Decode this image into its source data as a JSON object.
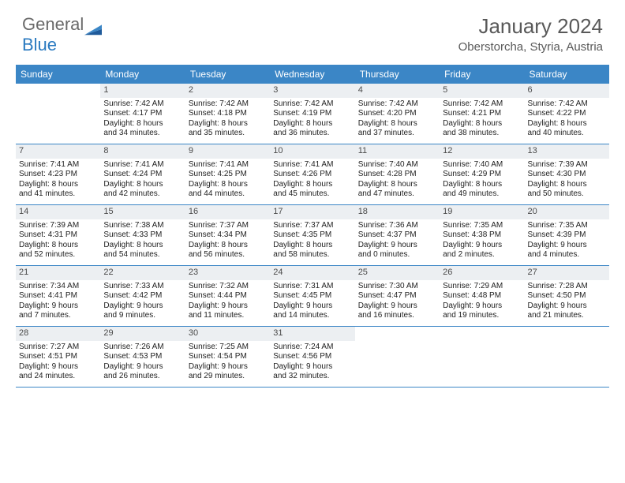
{
  "logo": {
    "general": "General",
    "blue": "Blue"
  },
  "title": "January 2024",
  "location": "Oberstorcha, Styria, Austria",
  "colors": {
    "header_bg": "#3b86c6",
    "header_text": "#ffffff",
    "daynum_bg": "#eceff2",
    "border": "#3b86c6",
    "logo_gray": "#6a6a6a",
    "logo_blue": "#2a7ac0",
    "title_color": "#595959"
  },
  "day_names": [
    "Sunday",
    "Monday",
    "Tuesday",
    "Wednesday",
    "Thursday",
    "Friday",
    "Saturday"
  ],
  "weeks": [
    [
      {
        "empty": true
      },
      {
        "n": "1",
        "rise": "7:42 AM",
        "set": "4:17 PM",
        "dl1": "Daylight: 8 hours",
        "dl2": "and 34 minutes."
      },
      {
        "n": "2",
        "rise": "7:42 AM",
        "set": "4:18 PM",
        "dl1": "Daylight: 8 hours",
        "dl2": "and 35 minutes."
      },
      {
        "n": "3",
        "rise": "7:42 AM",
        "set": "4:19 PM",
        "dl1": "Daylight: 8 hours",
        "dl2": "and 36 minutes."
      },
      {
        "n": "4",
        "rise": "7:42 AM",
        "set": "4:20 PM",
        "dl1": "Daylight: 8 hours",
        "dl2": "and 37 minutes."
      },
      {
        "n": "5",
        "rise": "7:42 AM",
        "set": "4:21 PM",
        "dl1": "Daylight: 8 hours",
        "dl2": "and 38 minutes."
      },
      {
        "n": "6",
        "rise": "7:42 AM",
        "set": "4:22 PM",
        "dl1": "Daylight: 8 hours",
        "dl2": "and 40 minutes."
      }
    ],
    [
      {
        "n": "7",
        "rise": "7:41 AM",
        "set": "4:23 PM",
        "dl1": "Daylight: 8 hours",
        "dl2": "and 41 minutes."
      },
      {
        "n": "8",
        "rise": "7:41 AM",
        "set": "4:24 PM",
        "dl1": "Daylight: 8 hours",
        "dl2": "and 42 minutes."
      },
      {
        "n": "9",
        "rise": "7:41 AM",
        "set": "4:25 PM",
        "dl1": "Daylight: 8 hours",
        "dl2": "and 44 minutes."
      },
      {
        "n": "10",
        "rise": "7:41 AM",
        "set": "4:26 PM",
        "dl1": "Daylight: 8 hours",
        "dl2": "and 45 minutes."
      },
      {
        "n": "11",
        "rise": "7:40 AM",
        "set": "4:28 PM",
        "dl1": "Daylight: 8 hours",
        "dl2": "and 47 minutes."
      },
      {
        "n": "12",
        "rise": "7:40 AM",
        "set": "4:29 PM",
        "dl1": "Daylight: 8 hours",
        "dl2": "and 49 minutes."
      },
      {
        "n": "13",
        "rise": "7:39 AM",
        "set": "4:30 PM",
        "dl1": "Daylight: 8 hours",
        "dl2": "and 50 minutes."
      }
    ],
    [
      {
        "n": "14",
        "rise": "7:39 AM",
        "set": "4:31 PM",
        "dl1": "Daylight: 8 hours",
        "dl2": "and 52 minutes."
      },
      {
        "n": "15",
        "rise": "7:38 AM",
        "set": "4:33 PM",
        "dl1": "Daylight: 8 hours",
        "dl2": "and 54 minutes."
      },
      {
        "n": "16",
        "rise": "7:37 AM",
        "set": "4:34 PM",
        "dl1": "Daylight: 8 hours",
        "dl2": "and 56 minutes."
      },
      {
        "n": "17",
        "rise": "7:37 AM",
        "set": "4:35 PM",
        "dl1": "Daylight: 8 hours",
        "dl2": "and 58 minutes."
      },
      {
        "n": "18",
        "rise": "7:36 AM",
        "set": "4:37 PM",
        "dl1": "Daylight: 9 hours",
        "dl2": "and 0 minutes."
      },
      {
        "n": "19",
        "rise": "7:35 AM",
        "set": "4:38 PM",
        "dl1": "Daylight: 9 hours",
        "dl2": "and 2 minutes."
      },
      {
        "n": "20",
        "rise": "7:35 AM",
        "set": "4:39 PM",
        "dl1": "Daylight: 9 hours",
        "dl2": "and 4 minutes."
      }
    ],
    [
      {
        "n": "21",
        "rise": "7:34 AM",
        "set": "4:41 PM",
        "dl1": "Daylight: 9 hours",
        "dl2": "and 7 minutes."
      },
      {
        "n": "22",
        "rise": "7:33 AM",
        "set": "4:42 PM",
        "dl1": "Daylight: 9 hours",
        "dl2": "and 9 minutes."
      },
      {
        "n": "23",
        "rise": "7:32 AM",
        "set": "4:44 PM",
        "dl1": "Daylight: 9 hours",
        "dl2": "and 11 minutes."
      },
      {
        "n": "24",
        "rise": "7:31 AM",
        "set": "4:45 PM",
        "dl1": "Daylight: 9 hours",
        "dl2": "and 14 minutes."
      },
      {
        "n": "25",
        "rise": "7:30 AM",
        "set": "4:47 PM",
        "dl1": "Daylight: 9 hours",
        "dl2": "and 16 minutes."
      },
      {
        "n": "26",
        "rise": "7:29 AM",
        "set": "4:48 PM",
        "dl1": "Daylight: 9 hours",
        "dl2": "and 19 minutes."
      },
      {
        "n": "27",
        "rise": "7:28 AM",
        "set": "4:50 PM",
        "dl1": "Daylight: 9 hours",
        "dl2": "and 21 minutes."
      }
    ],
    [
      {
        "n": "28",
        "rise": "7:27 AM",
        "set": "4:51 PM",
        "dl1": "Daylight: 9 hours",
        "dl2": "and 24 minutes."
      },
      {
        "n": "29",
        "rise": "7:26 AM",
        "set": "4:53 PM",
        "dl1": "Daylight: 9 hours",
        "dl2": "and 26 minutes."
      },
      {
        "n": "30",
        "rise": "7:25 AM",
        "set": "4:54 PM",
        "dl1": "Daylight: 9 hours",
        "dl2": "and 29 minutes."
      },
      {
        "n": "31",
        "rise": "7:24 AM",
        "set": "4:56 PM",
        "dl1": "Daylight: 9 hours",
        "dl2": "and 32 minutes."
      },
      {
        "empty": true
      },
      {
        "empty": true
      },
      {
        "empty": true
      }
    ]
  ]
}
